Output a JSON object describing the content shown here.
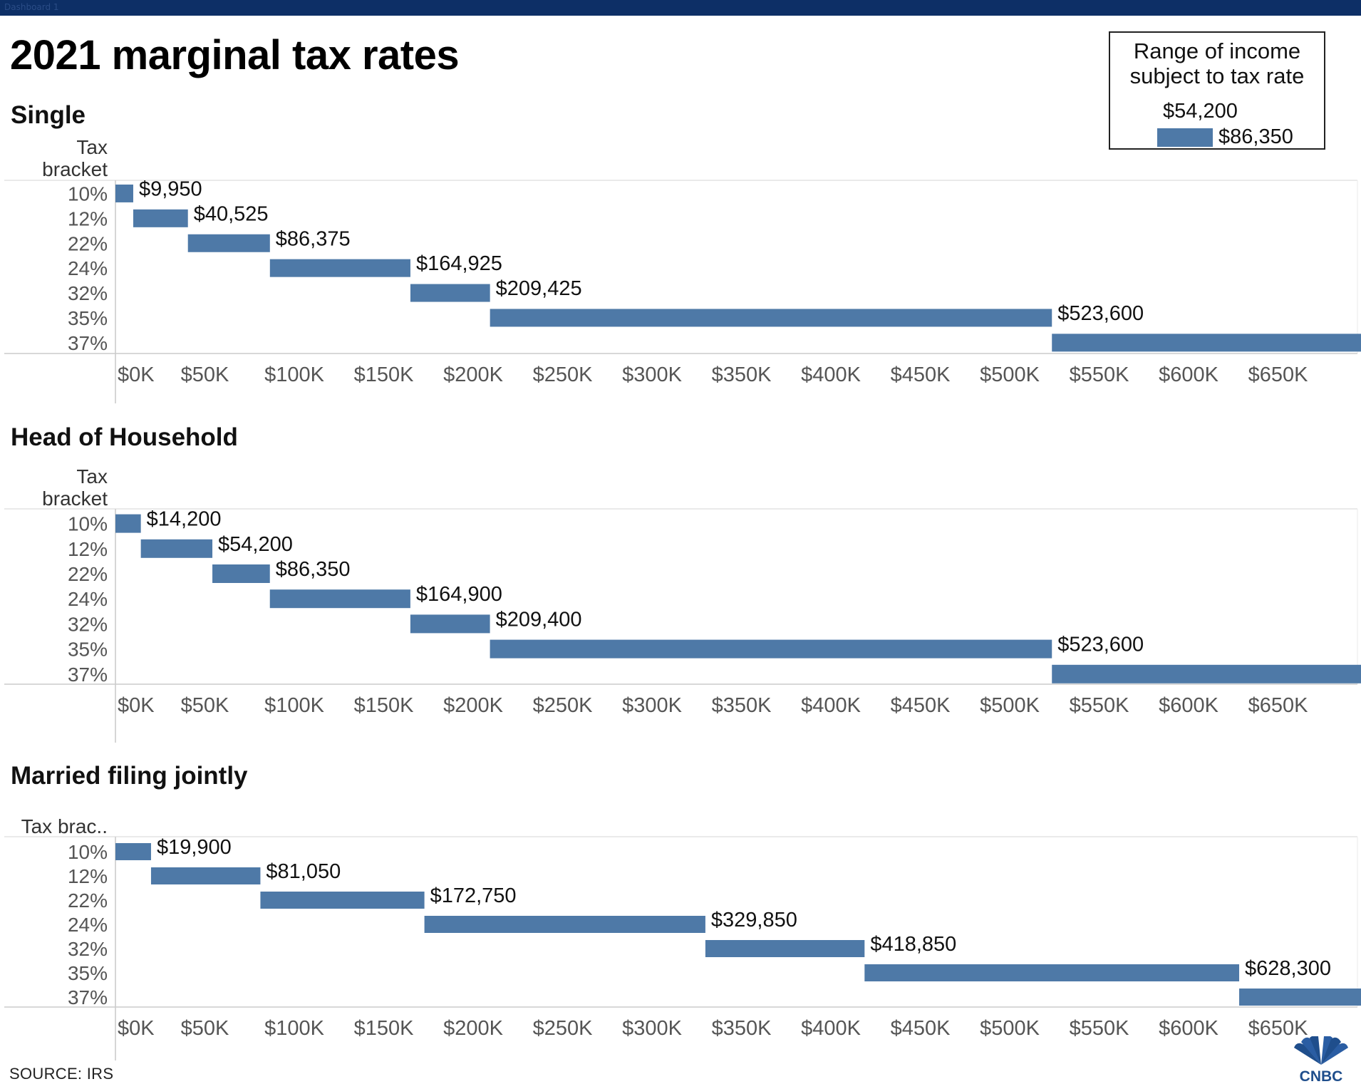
{
  "header": {
    "tab_label": "Dashboard 1"
  },
  "title": "2021 marginal tax rates",
  "legend": {
    "title_line1": "Range of income",
    "title_line2": "subject to tax rate",
    "low_value": "$54,200",
    "high_value": "$86,350",
    "bar_color": "#4e79a7"
  },
  "source": "SOURCE: IRS",
  "logo": {
    "text": "CNBC",
    "icon": "peacock-icon"
  },
  "chart_data": [
    {
      "type": "bar",
      "orientation": "horizontal-range",
      "title": "Single",
      "row_header": [
        "Tax",
        "bracket"
      ],
      "categories": [
        "10%",
        "12%",
        "22%",
        "24%",
        "32%",
        "35%",
        "37%"
      ],
      "ranges": [
        [
          0,
          9950
        ],
        [
          9950,
          40525
        ],
        [
          40525,
          86375
        ],
        [
          86375,
          164925
        ],
        [
          164925,
          209425
        ],
        [
          209425,
          523600
        ],
        [
          523600,
          700000
        ]
      ],
      "labels": [
        "$9,950",
        "$40,525",
        "$86,375",
        "$164,925",
        "$209,425",
        "$523,600",
        ""
      ],
      "xlim": [
        0,
        700000
      ],
      "xticks": [
        0,
        50000,
        100000,
        150000,
        200000,
        250000,
        300000,
        350000,
        400000,
        450000,
        500000,
        550000,
        600000,
        650000
      ],
      "xtick_labels": [
        "$0K",
        "$50K",
        "$100K",
        "$150K",
        "$200K",
        "$250K",
        "$300K",
        "$350K",
        "$400K",
        "$450K",
        "$500K",
        "$550K",
        "$600K",
        "$650K"
      ],
      "color": "#4e79a7"
    },
    {
      "type": "bar",
      "orientation": "horizontal-range",
      "title": "Head of Household",
      "row_header": [
        "Tax",
        "bracket"
      ],
      "categories": [
        "10%",
        "12%",
        "22%",
        "24%",
        "32%",
        "35%",
        "37%"
      ],
      "ranges": [
        [
          0,
          14200
        ],
        [
          14200,
          54200
        ],
        [
          54200,
          86350
        ],
        [
          86350,
          164900
        ],
        [
          164900,
          209400
        ],
        [
          209400,
          523600
        ],
        [
          523600,
          700000
        ]
      ],
      "labels": [
        "$14,200",
        "$54,200",
        "$86,350",
        "$164,900",
        "$209,400",
        "$523,600",
        ""
      ],
      "xlim": [
        0,
        700000
      ],
      "xticks": [
        0,
        50000,
        100000,
        150000,
        200000,
        250000,
        300000,
        350000,
        400000,
        450000,
        500000,
        550000,
        600000,
        650000
      ],
      "xtick_labels": [
        "$0K",
        "$50K",
        "$100K",
        "$150K",
        "$200K",
        "$250K",
        "$300K",
        "$350K",
        "$400K",
        "$450K",
        "$500K",
        "$550K",
        "$600K",
        "$650K"
      ],
      "color": "#4e79a7"
    },
    {
      "type": "bar",
      "orientation": "horizontal-range",
      "title": "Married filing jointly",
      "row_header": [
        "Tax brac.."
      ],
      "categories": [
        "10%",
        "12%",
        "22%",
        "24%",
        "32%",
        "35%",
        "37%"
      ],
      "ranges": [
        [
          0,
          19900
        ],
        [
          19900,
          81050
        ],
        [
          81050,
          172750
        ],
        [
          172750,
          329850
        ],
        [
          329850,
          418850
        ],
        [
          418850,
          628300
        ],
        [
          628300,
          700000
        ]
      ],
      "labels": [
        "$19,900",
        "$81,050",
        "$172,750",
        "$329,850",
        "$418,850",
        "$628,300",
        ""
      ],
      "xlim": [
        0,
        700000
      ],
      "xticks": [
        0,
        50000,
        100000,
        150000,
        200000,
        250000,
        300000,
        350000,
        400000,
        450000,
        500000,
        550000,
        600000,
        650000
      ],
      "xtick_labels": [
        "$0K",
        "$50K",
        "$100K",
        "$150K",
        "$200K",
        "$250K",
        "$300K",
        "$350K",
        "$400K",
        "$450K",
        "$500K",
        "$550K",
        "$600K",
        "$650K"
      ],
      "color": "#4e79a7"
    }
  ]
}
